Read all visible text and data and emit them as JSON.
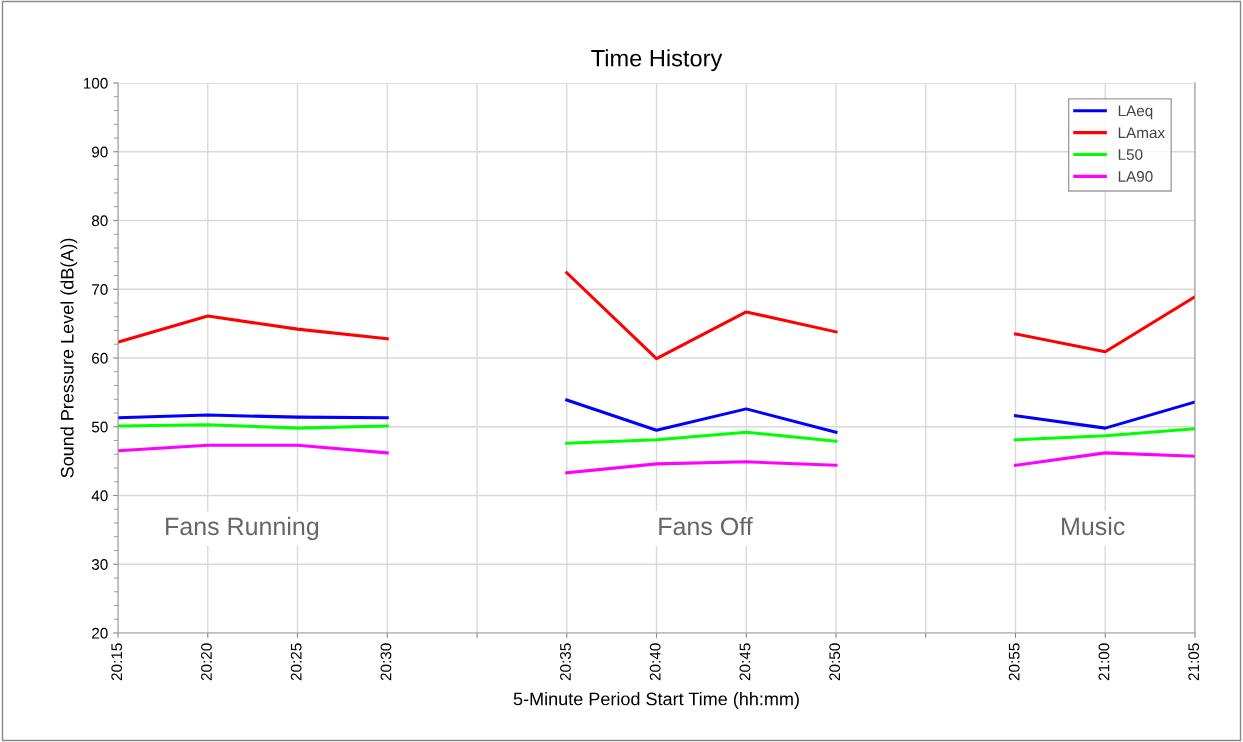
{
  "chart_data": {
    "type": "line",
    "title": "Time History",
    "xlabel": "5-Minute Period Start Time (hh:mm)",
    "ylabel": "Sound Pressure Level (dB(A))",
    "categories": [
      "20:15",
      "20:20",
      "20:25",
      "20:30",
      null,
      "20:35",
      "20:40",
      "20:45",
      "20:50",
      null,
      "20:55",
      "21:00",
      "21:05"
    ],
    "series": [
      {
        "name": "LAeq",
        "color": "#0000ff",
        "values": [
          51.3,
          51.7,
          51.4,
          51.3,
          null,
          53.9,
          49.5,
          52.6,
          49.2,
          null,
          51.6,
          49.8,
          53.6
        ]
      },
      {
        "name": "LAmax",
        "color": "#ff0000",
        "values": [
          62.3,
          66.1,
          64.2,
          62.8,
          null,
          72.4,
          59.9,
          66.7,
          63.8,
          null,
          63.5,
          60.9,
          68.9
        ]
      },
      {
        "name": "L50",
        "color": "#00ff00",
        "values": [
          50.1,
          50.3,
          49.8,
          50.1,
          null,
          47.6,
          48.1,
          49.2,
          47.9,
          null,
          48.1,
          48.7,
          49.7
        ]
      },
      {
        "name": "LA90",
        "color": "#ff00ff",
        "values": [
          46.5,
          47.3,
          47.3,
          46.2,
          null,
          43.3,
          44.6,
          44.9,
          44.4,
          null,
          44.4,
          46.2,
          45.7
        ]
      }
    ],
    "ylim": [
      20,
      100
    ],
    "yticks": [
      20,
      30,
      40,
      50,
      60,
      70,
      80,
      90,
      100
    ],
    "grid": true,
    "legend": "top right",
    "marker": "none",
    "line_style": "solid",
    "annotations": [
      "Fans Running",
      "Fans Off",
      "Music"
    ]
  }
}
